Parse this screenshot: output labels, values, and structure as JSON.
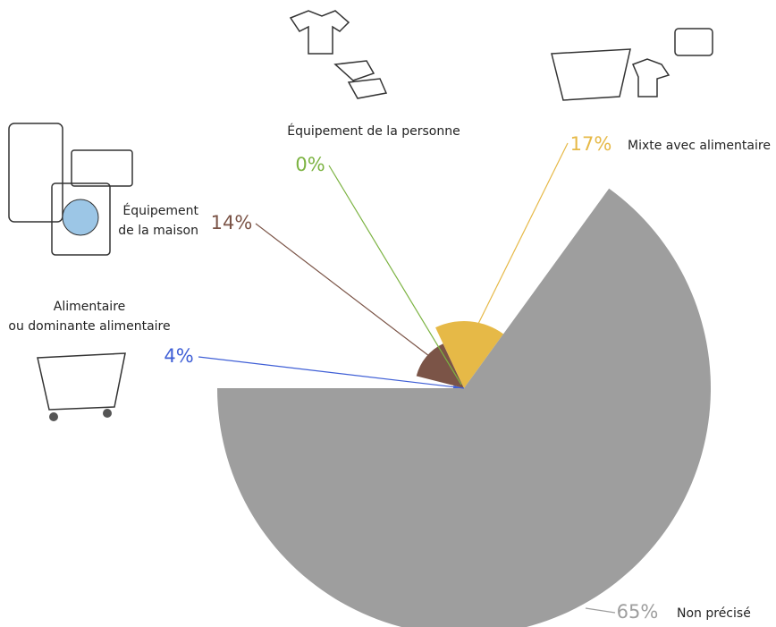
{
  "chart_data": {
    "type": "pie",
    "categories": [
      "Alimentaire\nou dominante alimentaire",
      "Équipement\nde la maison",
      "Équipement de la personne",
      "Mixte avec alimentaire",
      "Non précisé"
    ],
    "values": [
      4,
      14,
      0,
      17,
      65
    ],
    "value_labels": [
      "4%",
      "14%",
      "0%",
      "17%",
      "65%"
    ],
    "colors": [
      "#3f5fd6",
      "#7b5447",
      "#7cb342",
      "#e6b947",
      "#9e9e9e"
    ]
  }
}
